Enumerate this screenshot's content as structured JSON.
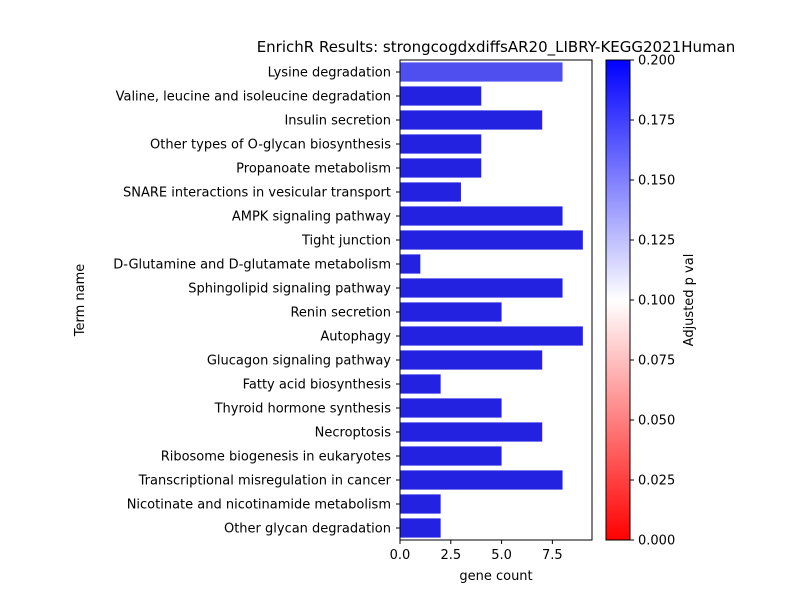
{
  "chart_data": {
    "type": "bar",
    "orientation": "horizontal",
    "title": "EnrichR Results: strongcogdxdiffsAR20_LIBRY-KEGG2021Human",
    "xlabel": "gene count",
    "ylabel": "Term name",
    "xlim": [
      0,
      9.45
    ],
    "xticks": [
      "0.0",
      "2.5",
      "5.0",
      "7.5"
    ],
    "xtick_values": [
      0,
      2.5,
      5.0,
      7.5
    ],
    "grid": false,
    "categories": [
      "Lysine degradation",
      "Valine, leucine and isoleucine degradation",
      "Insulin secretion",
      "Other types of O-glycan biosynthesis",
      "Propanoate metabolism",
      "SNARE interactions in vesicular transport",
      "AMPK signaling pathway",
      "Tight junction",
      "D-Glutamine and D-glutamate metabolism",
      "Sphingolipid signaling pathway",
      "Renin secretion",
      "Autophagy",
      "Glucagon signaling pathway",
      "Fatty acid biosynthesis",
      "Thyroid hormone synthesis",
      "Necroptosis",
      "Ribosome biogenesis in eukaryotes",
      "Transcriptional misregulation in cancer",
      "Nicotinate and nicotinamide metabolism",
      "Other glycan degradation"
    ],
    "values": [
      8,
      4,
      7,
      4,
      4,
      3,
      8,
      9,
      1,
      8,
      5,
      9,
      7,
      2,
      5,
      7,
      5,
      8,
      2,
      2
    ],
    "bar_colors": [
      "#4f4ff0",
      "#2222e0",
      "#2222e0",
      "#2222e0",
      "#2222e0",
      "#2222e0",
      "#2222e0",
      "#2222e0",
      "#2222e0",
      "#2222e0",
      "#2222e0",
      "#2222e0",
      "#2222e0",
      "#2222e0",
      "#2222e0",
      "#2222e0",
      "#2222e0",
      "#2222e0",
      "#2222e0",
      "#2222e0"
    ],
    "colorbar": {
      "label": "Adjusted p val",
      "range": [
        0,
        0.2
      ],
      "ticks": [
        "0.000",
        "0.025",
        "0.050",
        "0.075",
        "0.100",
        "0.125",
        "0.150",
        "0.175",
        "0.200"
      ],
      "tick_values": [
        0,
        0.025,
        0.05,
        0.075,
        0.1,
        0.125,
        0.15,
        0.175,
        0.2
      ],
      "colors": [
        "#ff0000",
        "#ffffff",
        "#0000ff"
      ]
    }
  }
}
